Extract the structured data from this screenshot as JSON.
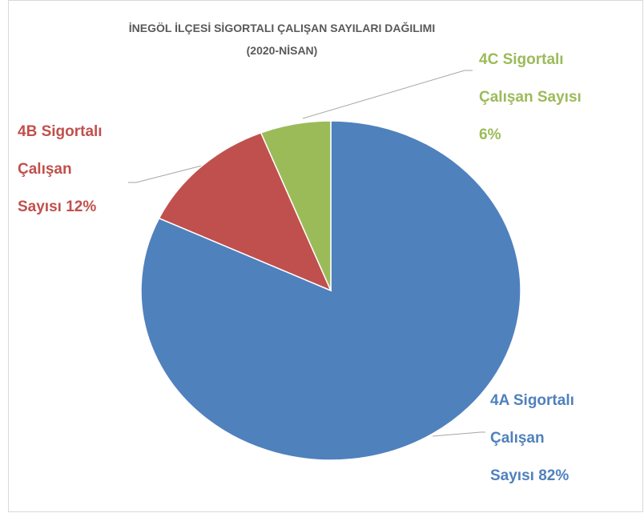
{
  "chart_data": {
    "type": "pie",
    "title": "İNEGÖL İLÇESİ SİGORTALI ÇALIŞAN SAYILARI DAĞILIMI",
    "subtitle": "(2020-NİSAN)",
    "categories": [
      "4A Sigortalı Çalışan Sayısı",
      "4B Sigortalı Çalışan Sayısı",
      "4C Sigortalı Çalışan Sayısı"
    ],
    "values": [
      82,
      12,
      6
    ],
    "value_labels": [
      "82%",
      "12%",
      "6%"
    ],
    "colors": [
      "#4f81bd",
      "#c0504d",
      "#9bbb59"
    ]
  }
}
